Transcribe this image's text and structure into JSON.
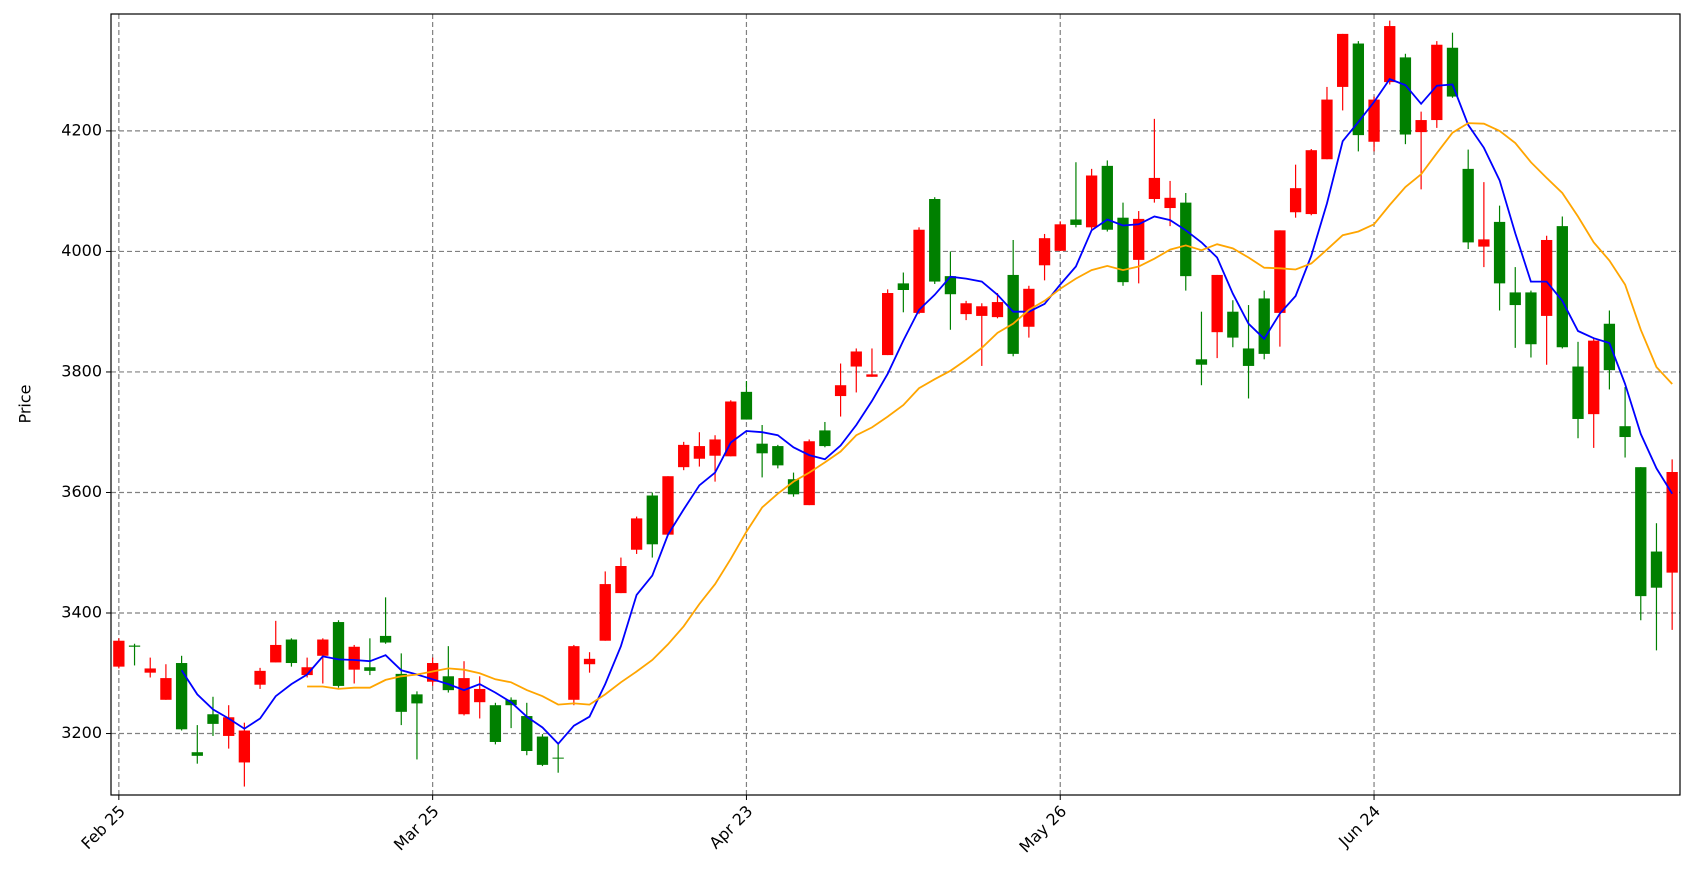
{
  "chart_data": {
    "type": "candlestick",
    "y_label": "Price",
    "categories": [
      "Feb 25",
      null,
      null,
      null,
      null,
      null,
      null,
      null,
      null,
      null,
      null,
      null,
      null,
      null,
      null,
      null,
      null,
      null,
      null,
      null,
      "Mar 25",
      null,
      null,
      null,
      null,
      null,
      null,
      null,
      null,
      null,
      null,
      null,
      null,
      null,
      null,
      null,
      null,
      null,
      null,
      null,
      "Apr 23",
      null,
      null,
      null,
      null,
      null,
      null,
      null,
      null,
      null,
      null,
      null,
      null,
      null,
      null,
      null,
      null,
      null,
      null,
      null,
      "May 26",
      null,
      null,
      null,
      null,
      null,
      null,
      null,
      null,
      null,
      null,
      null,
      null,
      null,
      null,
      null,
      null,
      null,
      null,
      null,
      "Jun 24",
      null,
      null,
      null,
      null,
      null,
      null,
      null,
      null,
      null,
      null,
      null,
      null,
      null,
      null,
      null,
      null,
      null,
      null,
      null
    ],
    "open": [
      3311,
      3346,
      3301,
      3256,
      3317,
      3169,
      3232,
      3196,
      3152,
      3281,
      3318,
      3356,
      3297,
      3329,
      3385,
      3306,
      3310,
      3362,
      3299,
      3265,
      3286,
      3295,
      3232,
      3252,
      3247,
      3256,
      3229,
      3195,
      3160,
      3256,
      3315,
      3354,
      3433,
      3505,
      3595,
      3530,
      3642,
      3656,
      3661,
      3660,
      3767,
      3681,
      3677,
      3622,
      3579,
      3703,
      3760,
      3809,
      3792,
      3828,
      3947,
      3898,
      4087,
      3959,
      3896,
      3893,
      3891,
      3961,
      3875,
      3977,
      4001,
      4053,
      4040,
      4142,
      4056,
      3986,
      4087,
      4072,
      4081,
      3821,
      3866,
      3900,
      3839,
      3922,
      3898,
      4065,
      4062,
      4153,
      4273,
      4345,
      4182,
      4281,
      4322,
      4198,
      4218,
      4338,
      4137,
      4008,
      4049,
      3932,
      3932,
      3893,
      4042,
      3809,
      3730,
      3880,
      3710,
      3642,
      3502,
      3467
    ],
    "high": [
      3358,
      3349,
      3326,
      3315,
      3329,
      3214,
      3261,
      3247,
      3218,
      3309,
      3387,
      3358,
      3326,
      3358,
      3388,
      3347,
      3358,
      3426,
      3333,
      3270,
      3326,
      3345,
      3320,
      3295,
      3251,
      3260,
      3251,
      3199,
      3184,
      3347,
      3335,
      3469,
      3492,
      3560,
      3600,
      3627,
      3684,
      3700,
      3695,
      3753,
      3785,
      3712,
      3679,
      3633,
      3688,
      3717,
      3814,
      3839,
      3839,
      3937,
      3965,
      4040,
      4090,
      4000,
      3918,
      3914,
      3931,
      4019,
      3943,
      4029,
      4050,
      4148,
      4137,
      4151,
      4081,
      4067,
      4220,
      4117,
      4097,
      3900,
      3961,
      3919,
      3911,
      3935,
      4035,
      4144,
      4170,
      4273,
      4361,
      4349,
      4257,
      4383,
      4328,
      4232,
      4349,
      4363,
      4169,
      4115,
      4076,
      3974,
      3935,
      4026,
      4058,
      3850,
      3856,
      3902,
      3775,
      3642,
      3549,
      3655
    ],
    "low": [
      3308,
      3313,
      3293,
      3256,
      3205,
      3150,
      3196,
      3175,
      3112,
      3274,
      3318,
      3311,
      3293,
      3283,
      3276,
      3283,
      3297,
      3349,
      3214,
      3157,
      3279,
      3268,
      3230,
      3225,
      3182,
      3209,
      3164,
      3146,
      3135,
      3247,
      3301,
      3354,
      3433,
      3498,
      3492,
      3530,
      3637,
      3643,
      3618,
      3660,
      3721,
      3625,
      3640,
      3593,
      3579,
      3675,
      3726,
      3766,
      3792,
      3828,
      3899,
      3896,
      3946,
      3870,
      3886,
      3810,
      3889,
      3826,
      3857,
      3952,
      4001,
      4040,
      4036,
      4033,
      3943,
      3947,
      4081,
      4042,
      3935,
      3778,
      3823,
      3841,
      3756,
      3821,
      3842,
      4056,
      4060,
      4153,
      4234,
      4166,
      4166,
      4277,
      4178,
      4103,
      4205,
      4255,
      4004,
      3974,
      3902,
      3840,
      3824,
      3812,
      3839,
      3690,
      3674,
      3771,
      3658,
      3388,
      3338,
      3372
    ],
    "close": [
      3354,
      3344,
      3308,
      3292,
      3207,
      3163,
      3216,
      3227,
      3205,
      3304,
      3347,
      3317,
      3310,
      3356,
      3279,
      3344,
      3304,
      3351,
      3236,
      3250,
      3317,
      3272,
      3292,
      3274,
      3186,
      3247,
      3171,
      3148,
      3159,
      3345,
      3324,
      3448,
      3478,
      3557,
      3514,
      3627,
      3679,
      3677,
      3688,
      3751,
      3721,
      3665,
      3645,
      3597,
      3685,
      3677,
      3778,
      3834,
      3796,
      3931,
      3936,
      4036,
      3950,
      3929,
      3914,
      3909,
      3916,
      3830,
      3938,
      4022,
      4045,
      4044,
      4126,
      4036,
      3949,
      4054,
      4122,
      4089,
      3959,
      3812,
      3961,
      3857,
      3810,
      3830,
      4035,
      4105,
      4168,
      4252,
      4361,
      4193,
      4252,
      4374,
      4194,
      4218,
      4343,
      4257,
      4015,
      4020,
      3947,
      3911,
      3846,
      4019,
      3841,
      3722,
      3852,
      3803,
      3692,
      3428,
      3442,
      3634
    ],
    "up_color": "#ff0000",
    "down_color": "#008000",
    "lines": [
      {
        "color": "#0000ff",
        "values": [
          null,
          null,
          null,
          null,
          3305,
          3265,
          3240,
          3225,
          3208,
          3225,
          3262,
          3282,
          3298,
          3328,
          3323,
          3322,
          3320,
          3330,
          3305,
          3298,
          3290,
          3282,
          3272,
          3282,
          3268,
          3252,
          3228,
          3210,
          3183,
          3213,
          3228,
          3282,
          3345,
          3430,
          3462,
          3530,
          3572,
          3612,
          3633,
          3683,
          3702,
          3700,
          3695,
          3675,
          3662,
          3655,
          3678,
          3712,
          3752,
          3797,
          3852,
          3903,
          3928,
          3958,
          3955,
          3950,
          3928,
          3900,
          3900,
          3913,
          3945,
          3975,
          4035,
          4053,
          4043,
          4045,
          4058,
          4052,
          4035,
          4015,
          3990,
          3930,
          3880,
          3855,
          3897,
          3926,
          3993,
          4080,
          4183,
          4215,
          4248,
          4286,
          4276,
          4245,
          4275,
          4277,
          4210,
          4172,
          4118,
          4030,
          3950,
          3950,
          3918,
          3868,
          3856,
          3848,
          3780,
          3697,
          3640,
          3598
        ]
      },
      {
        "color": "#ffa500",
        "values": [
          null,
          null,
          null,
          null,
          null,
          null,
          null,
          null,
          null,
          null,
          null,
          null,
          3278,
          3278,
          3274,
          3276,
          3276,
          3289,
          3295,
          3298,
          3303,
          3308,
          3306,
          3300,
          3290,
          3285,
          3272,
          3262,
          3248,
          3250,
          3248,
          3265,
          3285,
          3303,
          3322,
          3348,
          3378,
          3415,
          3448,
          3490,
          3535,
          3575,
          3598,
          3618,
          3633,
          3650,
          3668,
          3695,
          3708,
          3726,
          3745,
          3773,
          3788,
          3802,
          3820,
          3840,
          3865,
          3880,
          3903,
          3918,
          3938,
          3955,
          3969,
          3976,
          3969,
          3975,
          3988,
          4003,
          4010,
          4002,
          4012,
          4005,
          3990,
          3973,
          3972,
          3970,
          3980,
          4003,
          4027,
          4033,
          4045,
          4077,
          4107,
          4128,
          4163,
          4197,
          4213,
          4212,
          4200,
          4180,
          4148,
          4122,
          4097,
          4058,
          4015,
          3985,
          3945,
          3870,
          3808,
          3780
        ]
      }
    ],
    "ylim": [
      3098,
      4394
    ],
    "yticks": [
      3200,
      3400,
      3600,
      3800,
      4000,
      4200
    ],
    "grid": true
  }
}
